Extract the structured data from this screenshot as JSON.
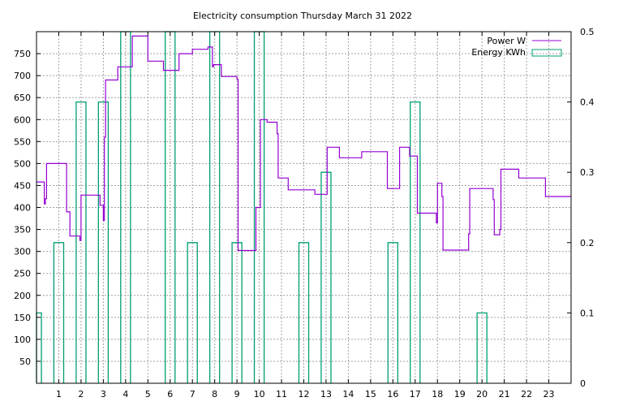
{
  "chart_data": {
    "type": "line",
    "title": "Electricity consumption Thursday March 31 2022",
    "x_ticks": [
      1,
      2,
      3,
      4,
      5,
      6,
      7,
      8,
      9,
      10,
      11,
      12,
      13,
      14,
      15,
      16,
      17,
      18,
      19,
      20,
      21,
      22,
      23
    ],
    "xlim": [
      0,
      24
    ],
    "y_ticks": [
      50,
      100,
      150,
      200,
      250,
      300,
      350,
      400,
      450,
      500,
      550,
      600,
      650,
      700,
      750
    ],
    "ylim": [
      0,
      800
    ],
    "y2_ticks": [
      0,
      0.1,
      0.2,
      0.3,
      0.4,
      0.5
    ],
    "y2_tick_labels": [
      "0",
      "0.1",
      "0.2",
      "0.3",
      "0.4",
      "0.5"
    ],
    "y2lim": [
      0,
      0.5
    ],
    "grid": true,
    "legend_position": "top-right",
    "colors": {
      "power": "#9400d3",
      "energy": "#009e73"
    },
    "series": [
      {
        "name": "Power W",
        "kind": "step-line",
        "points": [
          [
            0,
            458
          ],
          [
            0.35,
            458
          ],
          [
            0.35,
            408
          ],
          [
            0.4,
            408
          ],
          [
            0.4,
            420
          ],
          [
            0.45,
            420
          ],
          [
            0.45,
            500
          ],
          [
            1.35,
            500
          ],
          [
            1.35,
            390
          ],
          [
            1.5,
            390
          ],
          [
            1.5,
            335
          ],
          [
            1.95,
            335
          ],
          [
            1.95,
            325
          ],
          [
            2.0,
            325
          ],
          [
            2.0,
            428
          ],
          [
            2.85,
            428
          ],
          [
            2.85,
            405
          ],
          [
            3.0,
            405
          ],
          [
            3.0,
            370
          ],
          [
            3.05,
            370
          ],
          [
            3.05,
            560
          ],
          [
            3.1,
            560
          ],
          [
            3.1,
            690
          ],
          [
            3.65,
            690
          ],
          [
            3.65,
            720
          ],
          [
            4.3,
            720
          ],
          [
            4.3,
            790
          ],
          [
            5.0,
            790
          ],
          [
            5.0,
            733
          ],
          [
            5.7,
            733
          ],
          [
            5.7,
            712
          ],
          [
            6.4,
            712
          ],
          [
            6.4,
            750
          ],
          [
            7.0,
            750
          ],
          [
            7.0,
            760
          ],
          [
            7.7,
            760
          ],
          [
            7.7,
            765
          ],
          [
            7.9,
            765
          ],
          [
            7.9,
            720
          ],
          [
            7.95,
            720
          ],
          [
            7.95,
            725
          ],
          [
            8.3,
            725
          ],
          [
            8.3,
            698
          ],
          [
            9.0,
            698
          ],
          [
            9.0,
            692
          ],
          [
            9.05,
            692
          ],
          [
            9.05,
            302
          ],
          [
            9.85,
            302
          ],
          [
            9.85,
            400
          ],
          [
            10.05,
            400
          ],
          [
            10.05,
            600
          ],
          [
            10.35,
            600
          ],
          [
            10.35,
            594
          ],
          [
            10.8,
            594
          ],
          [
            10.8,
            568
          ],
          [
            10.85,
            568
          ],
          [
            10.85,
            467
          ],
          [
            11.3,
            467
          ],
          [
            11.3,
            440
          ],
          [
            12.5,
            440
          ],
          [
            12.5,
            430
          ],
          [
            13.05,
            430
          ],
          [
            13.05,
            537
          ],
          [
            13.6,
            537
          ],
          [
            13.6,
            513
          ],
          [
            14.6,
            513
          ],
          [
            14.6,
            527
          ],
          [
            15.75,
            527
          ],
          [
            15.75,
            443
          ],
          [
            16.3,
            443
          ],
          [
            16.3,
            537
          ],
          [
            16.75,
            537
          ],
          [
            16.75,
            517
          ],
          [
            17.1,
            517
          ],
          [
            17.1,
            387
          ],
          [
            17.95,
            387
          ],
          [
            17.95,
            365
          ],
          [
            18.0,
            365
          ],
          [
            18.0,
            455
          ],
          [
            18.2,
            455
          ],
          [
            18.2,
            425
          ],
          [
            18.25,
            425
          ],
          [
            18.25,
            303
          ],
          [
            19.4,
            303
          ],
          [
            19.4,
            340
          ],
          [
            19.45,
            340
          ],
          [
            19.45,
            443
          ],
          [
            20.5,
            443
          ],
          [
            20.5,
            418
          ],
          [
            20.55,
            418
          ],
          [
            20.55,
            338
          ],
          [
            20.8,
            338
          ],
          [
            20.8,
            350
          ],
          [
            20.85,
            350
          ],
          [
            20.85,
            487
          ],
          [
            21.65,
            487
          ],
          [
            21.65,
            467
          ],
          [
            22.85,
            467
          ],
          [
            22.85,
            425
          ],
          [
            24,
            425
          ]
        ]
      },
      {
        "name": "Energy KWh",
        "kind": "impulse-box",
        "bars": [
          {
            "x": 0,
            "value": 0.1
          },
          {
            "x": 1,
            "value": 0.2
          },
          {
            "x": 2,
            "value": 0.4
          },
          {
            "x": 3,
            "value": 0.4
          },
          {
            "x": 4,
            "value": 0.5
          },
          {
            "x": 6,
            "value": 0.5
          },
          {
            "x": 7,
            "value": 0.2
          },
          {
            "x": 8,
            "value": 0.5
          },
          {
            "x": 9,
            "value": 0.2
          },
          {
            "x": 10,
            "value": 0.5
          },
          {
            "x": 12,
            "value": 0.2
          },
          {
            "x": 13,
            "value": 0.3
          },
          {
            "x": 16,
            "value": 0.2
          },
          {
            "x": 17,
            "value": 0.4
          },
          {
            "x": 20,
            "value": 0.1
          }
        ]
      }
    ]
  }
}
